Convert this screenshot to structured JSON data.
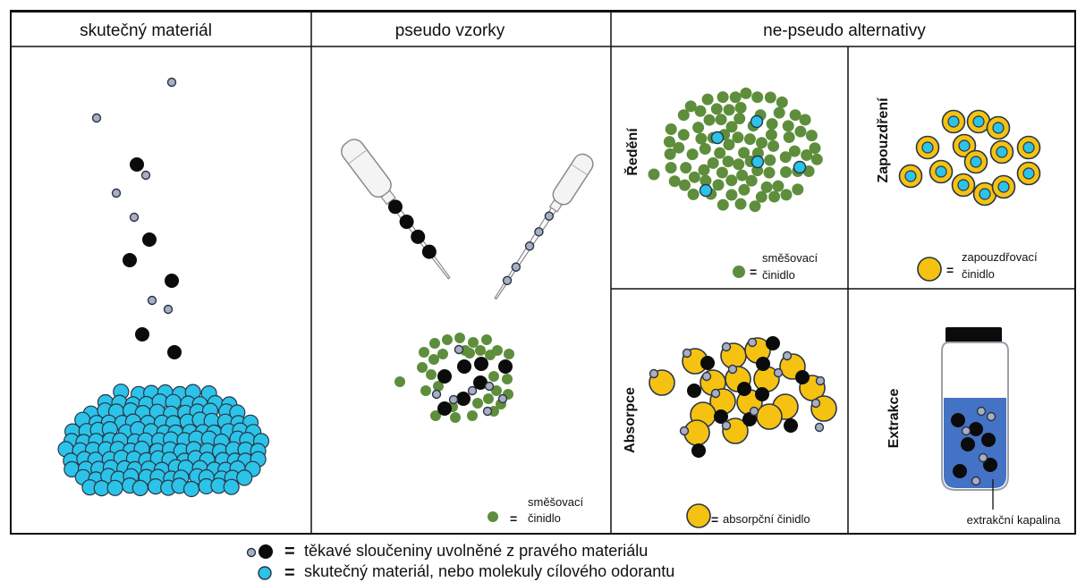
{
  "headers": {
    "real_material": "skutečný materiál",
    "pseudo_samples": "pseudo vzorky",
    "non_pseudo_alternatives": "ne-pseudo alternativy"
  },
  "pseudo_samples": {
    "legend_equals": "=",
    "legend_line1": "směšovací",
    "legend_line2": "činidlo"
  },
  "panels": {
    "dilution": {
      "label": "Ředění",
      "legend_equals": "=",
      "legend_line1": "směšovací",
      "legend_line2": "činidlo"
    },
    "encapsulation": {
      "label": "Zapouzdření",
      "legend_equals": "=",
      "legend_line1": "zapouzdřovací",
      "legend_line2": "činidlo"
    },
    "absorption": {
      "label": "Absorpce",
      "legend_equals": "=",
      "legend_text": "absorpční činidlo"
    },
    "extraction": {
      "label": "Extrakce",
      "callout": "extrakční kapalina"
    }
  },
  "legend": [
    {
      "equals": "=",
      "text": "těkavé sloučeniny uvolněné z pravého materiálu"
    },
    {
      "equals": "=",
      "text": "skutečný materiál, nebo molekuly cílového odorantu"
    }
  ],
  "colors": {
    "target_molecule": "#2cc3e8",
    "volatile_small": "#a9aec2",
    "volatile_large": "#0b0b0b",
    "mixing_agent": "#5e8e3c",
    "encapsulating_agent": "#f5c211",
    "extraction_liquid": "#4472c4",
    "outline": "#2a3446"
  }
}
